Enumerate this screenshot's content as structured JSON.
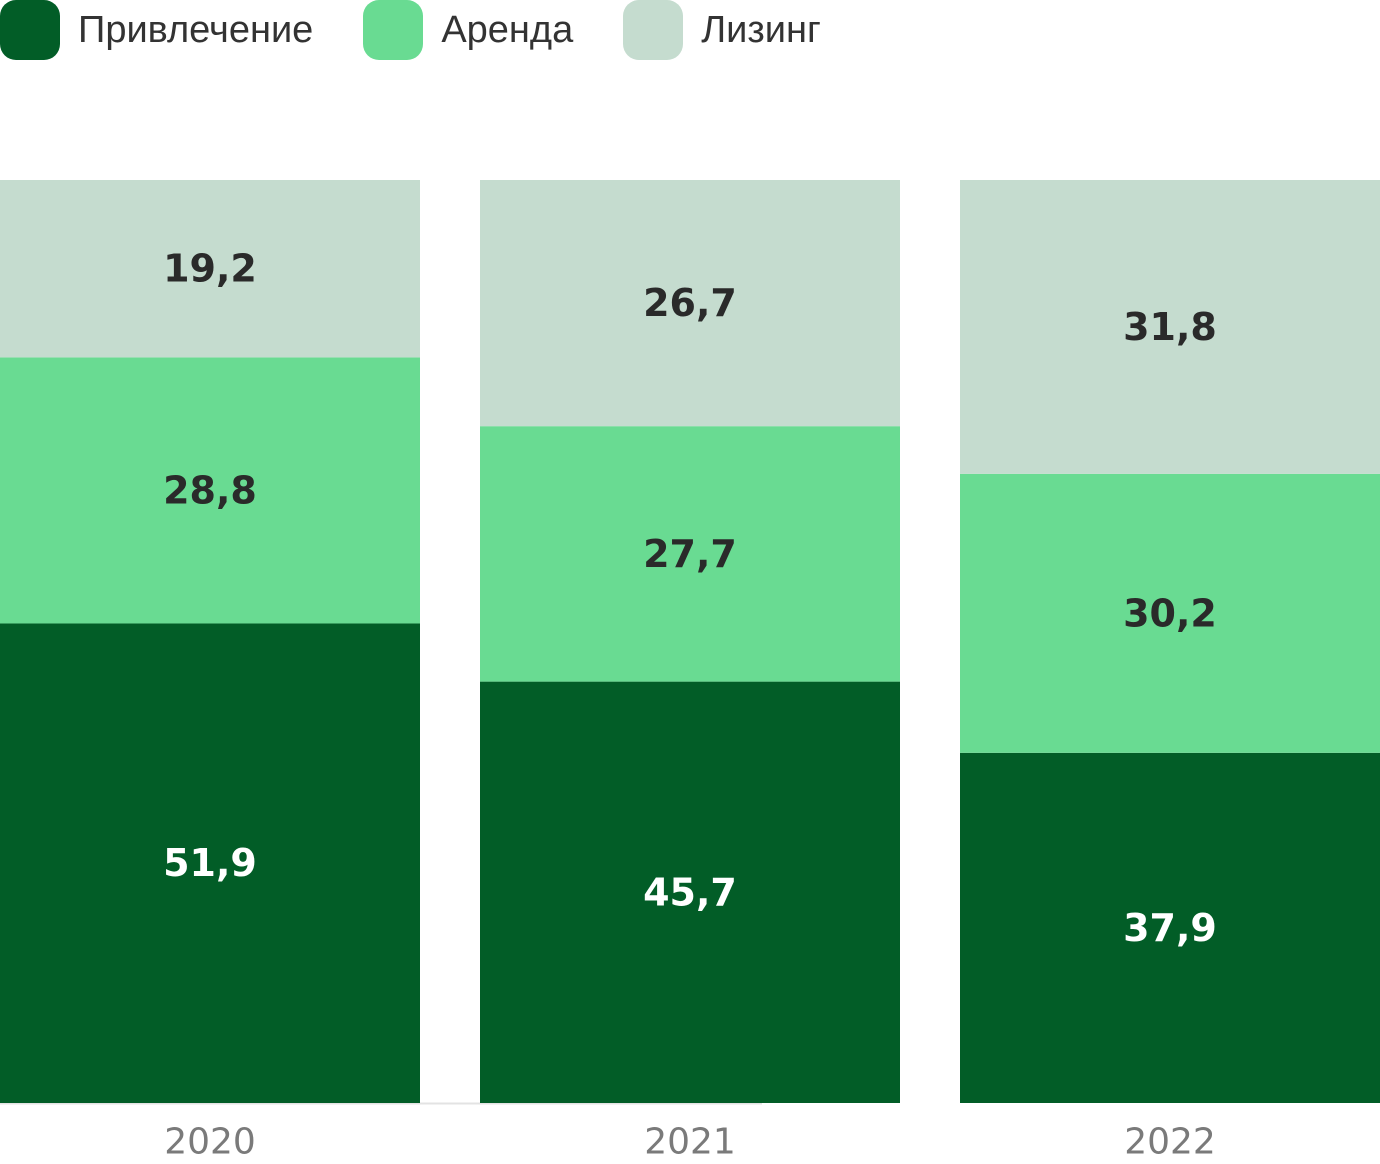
{
  "chart_data": {
    "type": "bar",
    "stacked": true,
    "categories": [
      "2020",
      "2021",
      "2022"
    ],
    "series": [
      {
        "name": "Привлечение",
        "values": [
          51.9,
          45.7,
          37.9
        ],
        "labels": [
          "51,9",
          "45,7",
          "37,9"
        ],
        "color": "#025d27",
        "label_color": "#ffffff"
      },
      {
        "name": "Аренда",
        "values": [
          28.8,
          27.7,
          30.2
        ],
        "labels": [
          "28,8",
          "27,7",
          "30,2"
        ],
        "color": "#69db92",
        "label_color": "#2a2a2a"
      },
      {
        "name": "Лизинг",
        "values": [
          19.2,
          26.7,
          31.8
        ],
        "labels": [
          "19,2",
          "26,7",
          "31,8"
        ],
        "color": "#c5dccf",
        "label_color": "#2a2a2a"
      }
    ],
    "legend_position": "top-left",
    "grid": false
  }
}
